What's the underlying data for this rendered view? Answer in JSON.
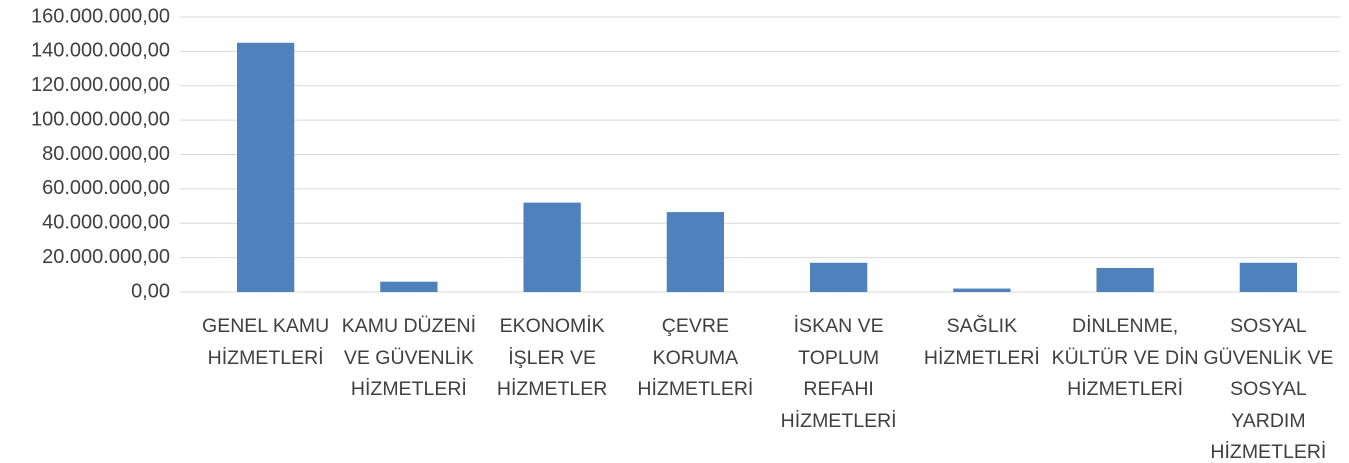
{
  "chart_data": {
    "type": "bar",
    "categories": [
      "GENEL KAMU HİZMETLERİ",
      "KAMU DÜZENİ VE GÜVENLİK HİZMETLERİ",
      "EKONOMİK İŞLER VE HİZMETLER",
      "ÇEVRE KORUMA HİZMETLERİ",
      "İSKAN VE TOPLUM REFAHI HİZMETLERİ",
      "SAĞLIK HİZMETLERİ",
      "DİNLENME, KÜLTÜR VE DİN HİZMETLERİ",
      "SOSYAL GÜVENLİK VE SOSYAL YARDIM HİZMETLERİ"
    ],
    "values": [
      145000000,
      6000000,
      52000000,
      46500000,
      17000000,
      2000000,
      14000000,
      17000000
    ],
    "color": "#4f81bd",
    "ylim": [
      0,
      160000000
    ],
    "yticks": [
      {
        "value": 0,
        "label": "0,00"
      },
      {
        "value": 20000000,
        "label": "20.000.000,00"
      },
      {
        "value": 40000000,
        "label": "40.000.000,00"
      },
      {
        "value": 60000000,
        "label": "60.000.000,00"
      },
      {
        "value": 80000000,
        "label": "80.000.000,00"
      },
      {
        "value": 100000000,
        "label": "100.000.000,00"
      },
      {
        "value": 120000000,
        "label": "120.000.000,00"
      },
      {
        "value": 140000000,
        "label": "140.000.000,00"
      },
      {
        "value": 160000000,
        "label": "160.000.000,00"
      }
    ],
    "grid": true
  }
}
